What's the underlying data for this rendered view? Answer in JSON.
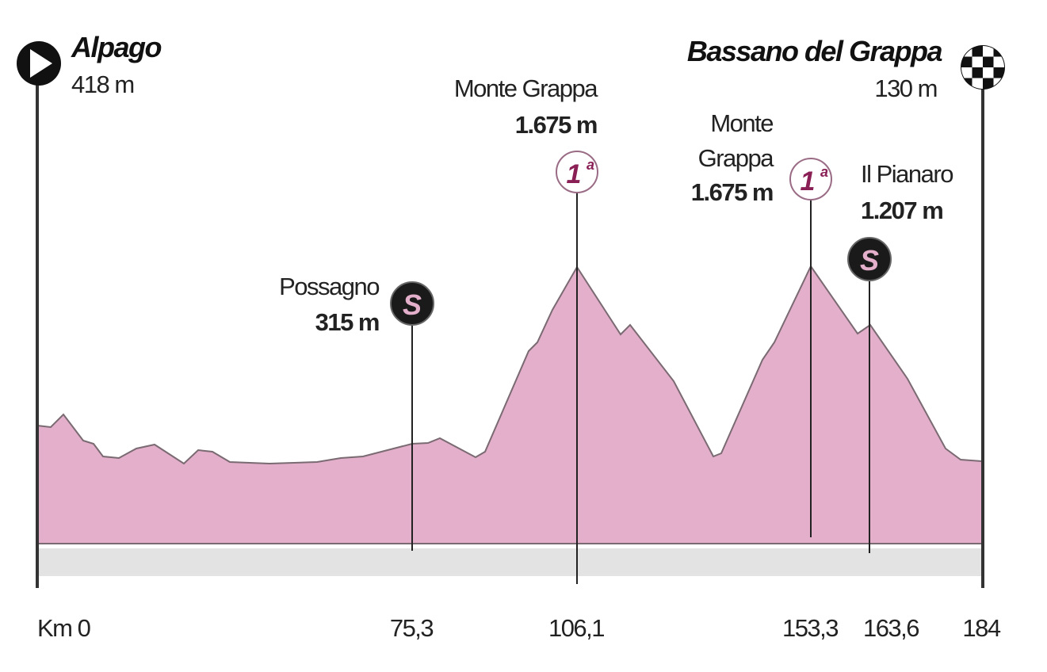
{
  "start": {
    "name": "Alpago",
    "elevation": "418 m"
  },
  "finish": {
    "name": "Bassano del Grappa",
    "elevation": "130 m"
  },
  "points": [
    {
      "name": [
        "Possagno"
      ],
      "elevation": "315 m",
      "badge": "S"
    },
    {
      "name": [
        "Monte Grappa"
      ],
      "elevation": "1.675 m",
      "badge": "1",
      "badge_sup": "a"
    },
    {
      "name": [
        "Monte",
        "Grappa"
      ],
      "elevation": "1.675 m",
      "badge": "1",
      "badge_sup": "a"
    },
    {
      "name": [
        "Il Pianaro"
      ],
      "elevation": "1.207 m",
      "badge": "S"
    }
  ],
  "km_labels": [
    "Km 0",
    "75,3",
    "106,1",
    "153,3",
    "163,6",
    "184"
  ]
}
